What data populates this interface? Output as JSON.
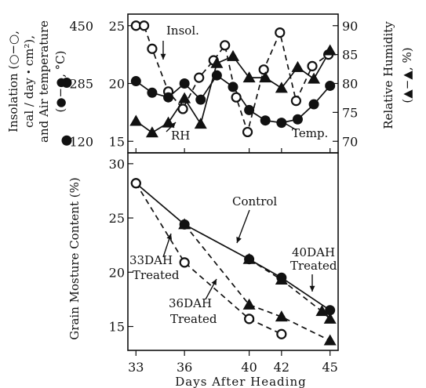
{
  "chart_data": [
    {
      "type": "line",
      "panel": "weather",
      "x_axis": {
        "ticks": [
          33,
          36,
          40,
          42,
          45
        ],
        "range": [
          32.5,
          45.5
        ]
      },
      "left_axis": {
        "label_lines": [
          "Insolation (○−○,",
          "cal / day・cm²),",
          "and Air temperature",
          "(●−●, °C)"
        ],
        "insolation_ticks": [
          120,
          285,
          450
        ],
        "temperature_ticks": [
          15,
          20,
          25
        ],
        "temperature_range": [
          14,
          26
        ]
      },
      "right_axis": {
        "label_lines": [
          "Relative Humidity",
          "(▲−▲, %)"
        ],
        "ticks": [
          70,
          75,
          80,
          85,
          90
        ],
        "range": [
          68,
          92
        ]
      },
      "series": [
        {
          "name": "Insol.",
          "marker": "open-circle",
          "axis": "left-temperature-scale",
          "style": "dashed",
          "x": [
            33,
            33.5,
            34,
            35,
            35.9,
            36.9,
            37.8,
            38.5,
            39.2,
            39.9,
            40.9,
            41.9,
            42.9,
            43.9,
            44.9
          ],
          "y": [
            25,
            25,
            23,
            19.3,
            17.8,
            20.5,
            22,
            23.3,
            18.8,
            15.8,
            21.2,
            24.4,
            18.5,
            21.5,
            22.5
          ]
        },
        {
          "name": "Temp.",
          "marker": "filled-circle",
          "axis": "left-temperature-scale",
          "style": "solid",
          "x": [
            33,
            34,
            35,
            36,
            37,
            38,
            39,
            40,
            41,
            42,
            43,
            44,
            45
          ],
          "y": [
            20.2,
            19.2,
            18.8,
            20.0,
            18.6,
            20.7,
            19.7,
            17.7,
            16.8,
            16.6,
            16.9,
            18.2,
            19.8
          ]
        },
        {
          "name": "RH",
          "marker": "filled-triangle",
          "axis": "right",
          "style": "solid",
          "x": [
            33,
            34,
            35,
            36,
            37,
            38,
            39,
            40,
            41,
            42,
            43,
            44,
            45
          ],
          "y": [
            73.5,
            71.5,
            73.2,
            77.4,
            73,
            83.5,
            84.7,
            81,
            81,
            79.2,
            82.8,
            80.8,
            85.7
          ]
        }
      ],
      "annotations": {
        "insol": "Insol.",
        "temp": "Temp.",
        "rh": "RH"
      }
    },
    {
      "type": "line",
      "panel": "moisture",
      "xlabel": "Days After Heading",
      "ylabel": "Grain Mosture Content (%)",
      "x_axis": {
        "ticks": [
          33,
          36,
          40,
          42,
          45
        ],
        "range": [
          32.5,
          45.5
        ]
      },
      "y_axis": {
        "ticks": [
          15,
          20,
          25,
          30
        ],
        "range": [
          12.8,
          31
        ]
      },
      "series": [
        {
          "name": "Control",
          "marker": "filled-circle",
          "style": "solid",
          "x": [
            33,
            36,
            40,
            42,
            45
          ],
          "y": [
            28.2,
            24.4,
            21.2,
            19.5,
            16.5
          ]
        },
        {
          "name": "33DAH Treated",
          "marker": "open-circle",
          "style": "dashed",
          "x": [
            33,
            36,
            40,
            42
          ],
          "y": [
            28.2,
            20.9,
            15.7,
            14.3
          ]
        },
        {
          "name": "36DAH Treated",
          "marker": "filled-triangle",
          "style": "dashed",
          "x": [
            36,
            40,
            42,
            45
          ],
          "y": [
            24.4,
            17,
            15.9,
            13.7
          ]
        },
        {
          "name": "40DAH Treated",
          "marker": "filled-triangle",
          "style": "dashed",
          "x": [
            40,
            42,
            44.5,
            45
          ],
          "y": [
            21.2,
            19.3,
            16.4,
            15.7
          ]
        }
      ],
      "annotations": {
        "control": "Control",
        "t33": [
          "33DAH",
          "Treated"
        ],
        "t36": [
          "36DAH",
          "Treated"
        ],
        "t40": [
          "40DAH",
          "Treated"
        ]
      }
    }
  ]
}
